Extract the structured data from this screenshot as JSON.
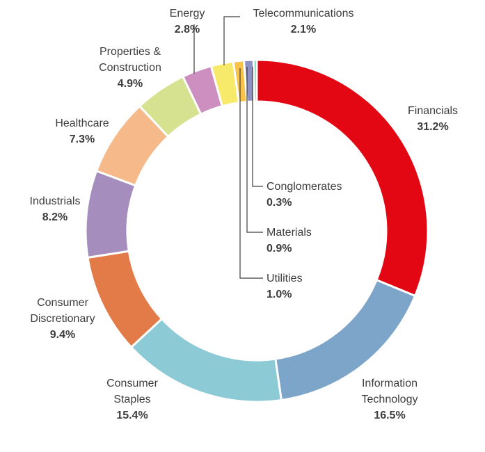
{
  "chart_data": {
    "type": "pie",
    "title": "",
    "categories": [
      "Financials",
      "Information Technology",
      "Consumer Staples",
      "Consumer Discretionary",
      "Industrials",
      "Healthcare",
      "Properties & Construction",
      "Energy",
      "Telecommunications",
      "Utilities",
      "Materials",
      "Conglomerates"
    ],
    "values": [
      31.2,
      16.5,
      15.4,
      9.4,
      8.2,
      7.3,
      4.9,
      2.8,
      2.1,
      1.0,
      0.9,
      0.3
    ],
    "value_labels": [
      "31.2%",
      "16.5%",
      "15.4%",
      "9.4%",
      "8.2%",
      "7.3%",
      "4.9%",
      "2.8%",
      "2.1%",
      "1.0%",
      "0.9%",
      "0.3%"
    ],
    "label_lines": [
      [
        "Financials"
      ],
      [
        "Information",
        "Technology"
      ],
      [
        "Consumer",
        "Staples"
      ],
      [
        "Consumer",
        "Discretionary"
      ],
      [
        "Industrials"
      ],
      [
        "Healthcare"
      ],
      [
        "Properties &",
        "Construction"
      ],
      [
        "Energy"
      ],
      [
        "Telecommunications"
      ],
      [
        "Utilities"
      ],
      [
        "Materials"
      ],
      [
        "Conglomerates"
      ]
    ],
    "colors": [
      "#e30613",
      "#7da4c9",
      "#8ccbd6",
      "#e37b48",
      "#a58ebd",
      "#f5b98a",
      "#d6e28f",
      "#cc8fbf",
      "#f7ea6a",
      "#f9c24a",
      "#8e91c4",
      "#6fbfa8"
    ],
    "donut": true,
    "legend": "none"
  }
}
